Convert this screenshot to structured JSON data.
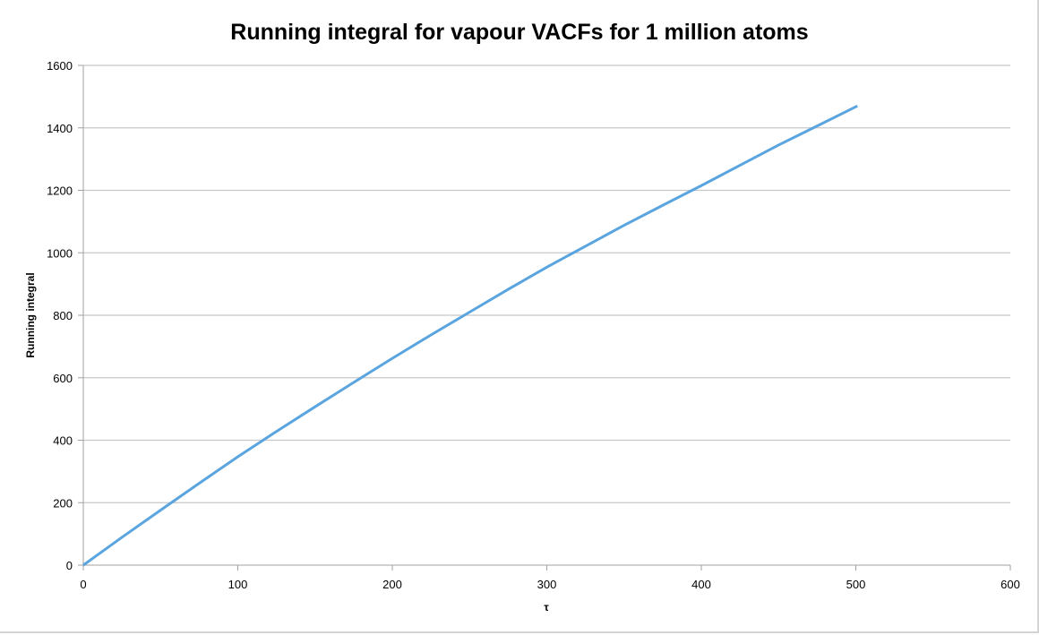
{
  "chart_data": {
    "type": "line",
    "title": "Running integral for vapour VACFs for 1 million atoms",
    "xlabel": "τ",
    "ylabel": "Running integral",
    "xlim": [
      0,
      600
    ],
    "ylim": [
      0,
      1600
    ],
    "xticks": [
      "0",
      "100",
      "200",
      "300",
      "400",
      "500",
      "600"
    ],
    "yticks": [
      "0",
      "200",
      "400",
      "600",
      "800",
      "1000",
      "1200",
      "1400",
      "1600"
    ],
    "grid": "horizontal",
    "legend": "none",
    "series": [
      {
        "name": "Running integral",
        "color": "#5aa5e0",
        "x": [
          0,
          25,
          50,
          75,
          100,
          125,
          150,
          175,
          200,
          225,
          250,
          275,
          300,
          325,
          350,
          375,
          400,
          425,
          450,
          475,
          501
        ],
        "y": [
          0,
          89,
          176,
          262,
          347,
          428,
          507,
          585,
          662,
          737,
          810,
          883,
          954,
          1021,
          1088,
          1152,
          1215,
          1280,
          1345,
          1406,
          1470
        ]
      }
    ]
  }
}
